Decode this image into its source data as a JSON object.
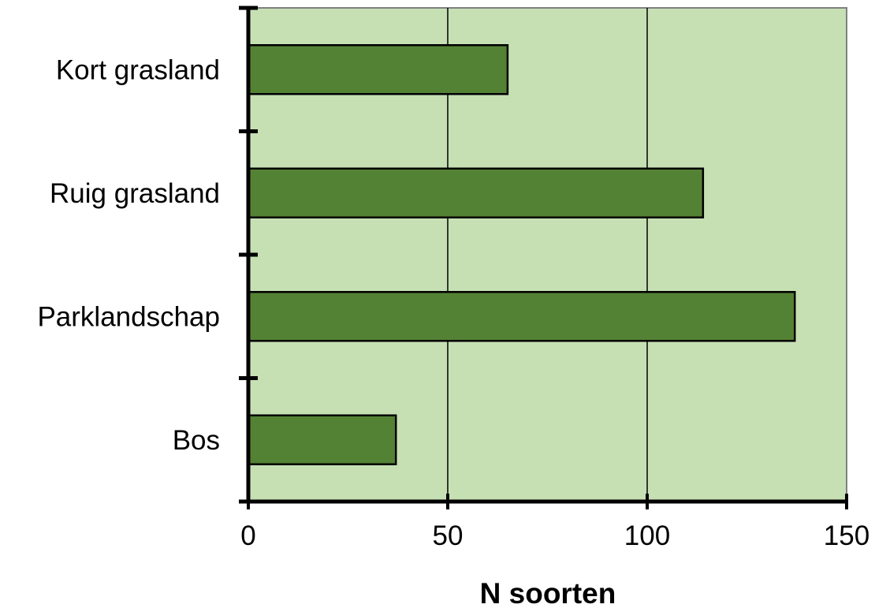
{
  "chart_data": {
    "type": "bar",
    "orientation": "horizontal",
    "title": "",
    "xlabel": "N soorten",
    "ylabel": "",
    "categories": [
      "Kort grasland",
      "Ruig grasland",
      "Parklandschap",
      "Bos"
    ],
    "values": [
      65,
      114,
      137,
      37
    ],
    "xlim": [
      0,
      150
    ],
    "x_ticks": [
      "0",
      "50",
      "100",
      "150"
    ],
    "grid": "vertical",
    "legend": "none",
    "colors": {
      "plot_background": "#c6e0b4",
      "bar_fill": "#548235",
      "bar_stroke": "#000000",
      "grid": "#000000",
      "axis": "#000000"
    }
  }
}
